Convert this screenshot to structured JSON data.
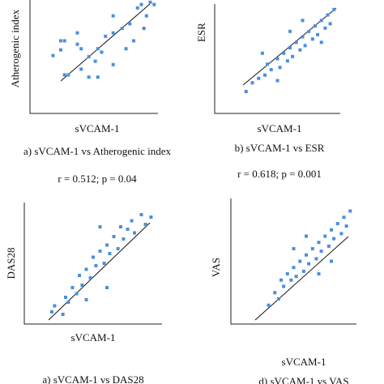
{
  "chart_data": [
    {
      "type": "scatter",
      "title": "a) sVCAM-1 vs Atherogenic index",
      "xlabel": "sVCAM-1",
      "ylabel": "Atherogenic index",
      "annotation": "r = 0.512; p = 0.04",
      "color": "#4a8fdc",
      "xlim": [
        0,
        100
      ],
      "ylim": [
        0,
        100
      ],
      "x": [
        24,
        27,
        18,
        24,
        37,
        40,
        46,
        53,
        56,
        51,
        59,
        65,
        72,
        78,
        84,
        87,
        94,
        97,
        91,
        89,
        81,
        75,
        65,
        53,
        40,
        30,
        65,
        46,
        37,
        27
      ],
      "values": [
        64,
        64,
        51,
        56,
        61,
        57,
        50,
        57,
        54,
        46,
        68,
        71,
        75,
        79,
        93,
        96,
        98,
        96,
        86,
        75,
        64,
        57,
        43,
        32,
        39,
        34,
        86,
        32,
        71,
        34
      ]
    },
    {
      "type": "scatter",
      "title": "b) sVCAM-1 vs ESR",
      "xlabel": "sVCAM-1",
      "ylabel": "ESR",
      "annotation": "r = 0.618; p = 0.001",
      "color": "#4a8fdc",
      "xlim": [
        0,
        100
      ],
      "ylim": [
        0,
        100
      ],
      "x": [
        25,
        30,
        35,
        40,
        42,
        45,
        50,
        52,
        55,
        58,
        60,
        62,
        65,
        68,
        70,
        72,
        75,
        78,
        80,
        82,
        85,
        88,
        90,
        92,
        95,
        70,
        60,
        85,
        50,
        38
      ],
      "values": [
        20,
        28,
        32,
        35,
        45,
        40,
        50,
        42,
        55,
        48,
        60,
        52,
        65,
        58,
        70,
        62,
        75,
        68,
        80,
        72,
        85,
        78,
        90,
        82,
        95,
        85,
        75,
        65,
        30,
        55
      ]
    },
    {
      "type": "scatter",
      "title": "a) sVCAM-1 vs DAS28",
      "xlabel": "sVCAM-1",
      "ylabel": "DAS28",
      "color": "#4a8fdc",
      "xlim": [
        0,
        100
      ],
      "ylim": [
        0,
        100
      ],
      "x": [
        20,
        22,
        28,
        30,
        32,
        35,
        38,
        40,
        42,
        45,
        48,
        50,
        52,
        55,
        58,
        60,
        62,
        65,
        68,
        70,
        72,
        75,
        78,
        80,
        85,
        88,
        92,
        60,
        55,
        45
      ],
      "values": [
        10,
        15,
        8,
        22,
        18,
        30,
        25,
        40,
        32,
        45,
        38,
        55,
        48,
        60,
        50,
        65,
        58,
        72,
        62,
        80,
        70,
        78,
        85,
        75,
        90,
        82,
        88,
        30,
        80,
        20
      ]
    },
    {
      "type": "scatter",
      "title": "d) sVCAM-1 vs VAS",
      "xlabel": "sVCAM-1",
      "ylabel": "VAS",
      "color": "#4a8fdc",
      "xlim": [
        0,
        100
      ],
      "ylim": [
        0,
        100
      ],
      "x": [
        30,
        35,
        38,
        40,
        42,
        45,
        48,
        50,
        52,
        55,
        58,
        60,
        62,
        65,
        68,
        70,
        72,
        75,
        78,
        80,
        82,
        85,
        88,
        90,
        92,
        95,
        60,
        70,
        50,
        80
      ],
      "values": [
        15,
        25,
        20,
        35,
        30,
        40,
        35,
        45,
        38,
        50,
        42,
        55,
        48,
        60,
        52,
        65,
        58,
        70,
        62,
        75,
        68,
        80,
        72,
        85,
        78,
        90,
        70,
        40,
        60,
        50
      ]
    }
  ]
}
